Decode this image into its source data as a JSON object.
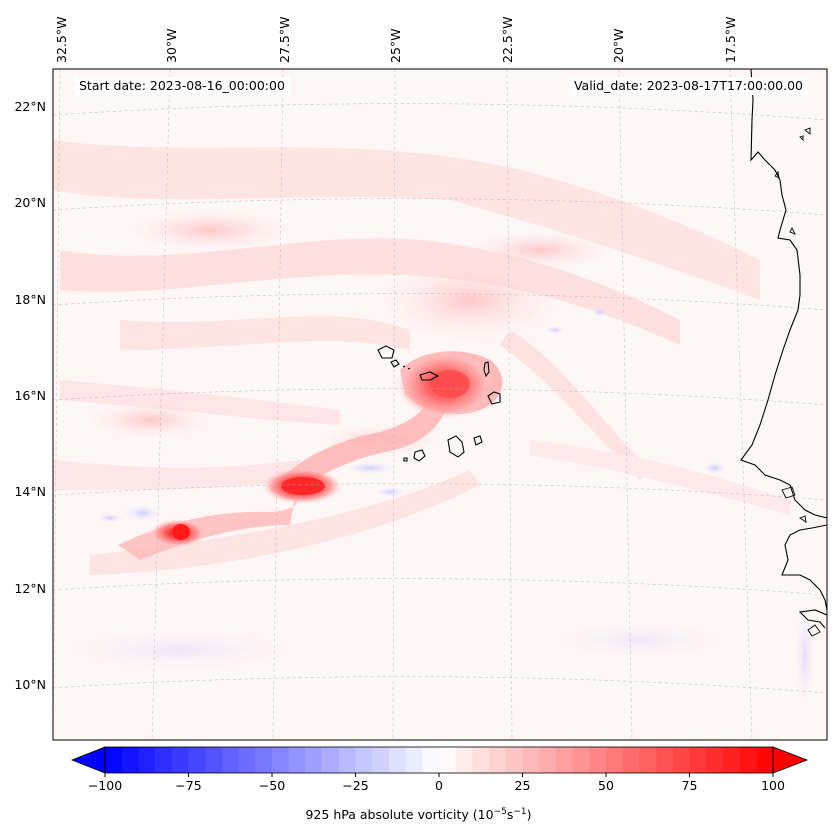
{
  "annotations": {
    "start_date": "Start date: 2023-08-16_00:00:00",
    "valid_date": "Valid_date: 2023-08-17T17:00:00.00"
  },
  "longitude_labels": [
    "32.5°W",
    "30°W",
    "27.5°W",
    "25°W",
    "22.5°W",
    "20°W",
    "17.5°W"
  ],
  "latitude_labels": [
    "22°N",
    "20°N",
    "18°N",
    "16°N",
    "14°N",
    "12°N",
    "10°N"
  ],
  "colorbar": {
    "label_main": "925 hPa absolute vorticity (10",
    "label_exp1": "−5",
    "label_mid": "s",
    "label_exp2": "−1",
    "label_end": ")",
    "tick_labels": [
      "−100",
      "−75",
      "−50",
      "−25",
      "0",
      "25",
      "50",
      "75",
      "100"
    ],
    "range": [
      -100,
      100
    ],
    "colormap": "bwr",
    "extend": "both"
  },
  "map": {
    "extent_lon": [
      "32.5°W",
      "16°W"
    ],
    "extent_lat": [
      "9°N",
      "22.8°N"
    ],
    "projection": "lambert-conformal",
    "field": "925 hPa absolute vorticity",
    "vorticity_maxima_color": "#ff1a1a",
    "coastline_color": "#000000"
  }
}
